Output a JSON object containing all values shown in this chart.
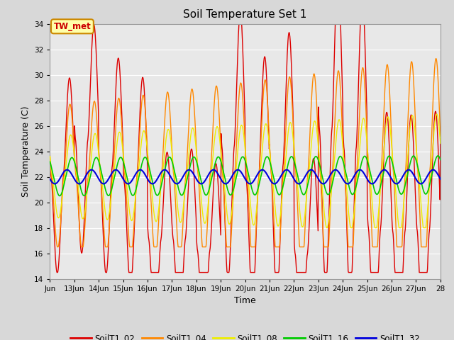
{
  "title": "Soil Temperature Set 1",
  "xlabel": "Time",
  "ylabel": "Soil Temperature (C)",
  "ylim": [
    14,
    34
  ],
  "yticks": [
    14,
    16,
    18,
    20,
    22,
    24,
    26,
    28,
    30,
    32,
    34
  ],
  "fig_bg_color": "#d8d8d8",
  "plot_bg_color": "#e8e8e8",
  "series_colors": {
    "SoilT1_02": "#dd0000",
    "SoilT1_04": "#ff8800",
    "SoilT1_08": "#eeee00",
    "SoilT1_16": "#00cc00",
    "SoilT1_32": "#0000dd"
  },
  "annotation_text": "TW_met",
  "annotation_bg": "#ffffaa",
  "annotation_border": "#cc8800",
  "annotation_text_color": "#cc0000",
  "grid_color": "#ffffff",
  "n_points": 1000
}
